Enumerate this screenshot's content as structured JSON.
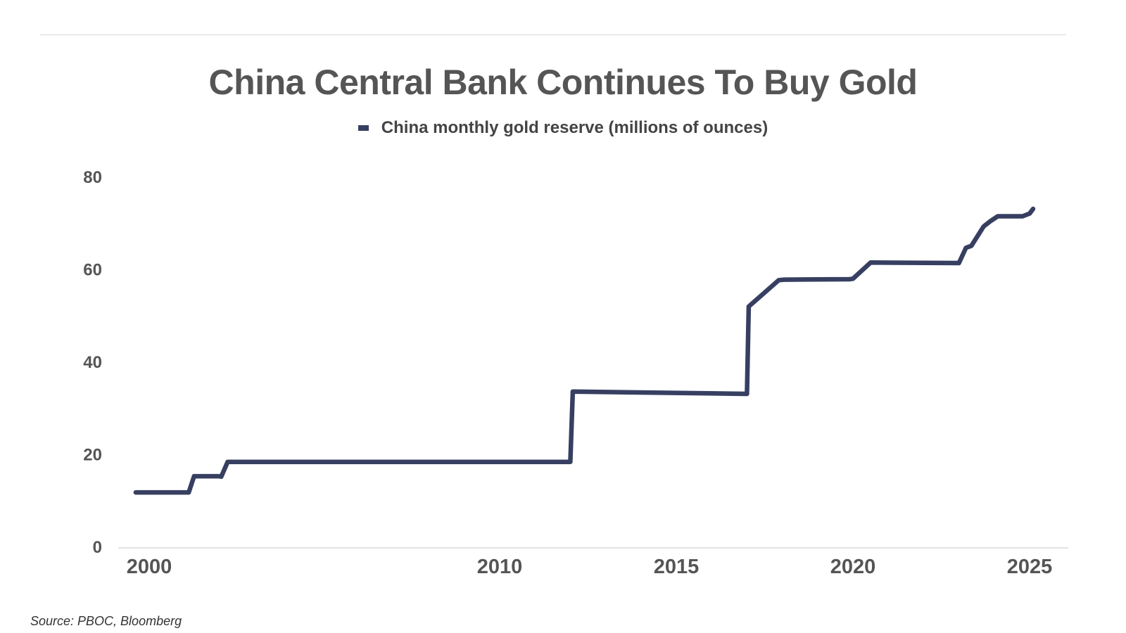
{
  "source_note": "Source: PBOC, Bloomberg",
  "chart_data": {
    "type": "line",
    "title": "China Central Bank Continues To Buy Gold",
    "xlabel": "",
    "ylabel": "",
    "xlim": [
      1999.7,
      2025.4
    ],
    "ylim": [
      0,
      80
    ],
    "x_ticks": [
      2000,
      2010,
      2015,
      2020,
      2025
    ],
    "y_ticks": [
      0,
      20,
      40,
      60,
      80
    ],
    "grid": false,
    "legend": "top-center",
    "series": [
      {
        "name": "China monthly gold reserve (millions of ounces)",
        "color": "#373f61",
        "x": [
          1999.7,
          2001.2,
          2001.35,
          2002.05,
          2002.12,
          2002.3,
          2006.0,
          2012.0,
          2012.07,
          2017.0,
          2017.05,
          2017.9,
          2018.05,
          2019.9,
          2020.0,
          2020.5,
          2023.0,
          2023.2,
          2023.35,
          2023.7,
          2023.9,
          2024.1,
          2024.8,
          2025.0,
          2025.1
        ],
        "y": [
          11.7,
          11.7,
          15.2,
          15.2,
          15.1,
          18.3,
          18.3,
          18.3,
          33.5,
          33.0,
          51.9,
          57.6,
          57.7,
          57.8,
          57.9,
          61.4,
          61.3,
          64.6,
          65.0,
          69.2,
          70.4,
          71.4,
          71.4,
          72.0,
          73.0
        ]
      }
    ]
  }
}
